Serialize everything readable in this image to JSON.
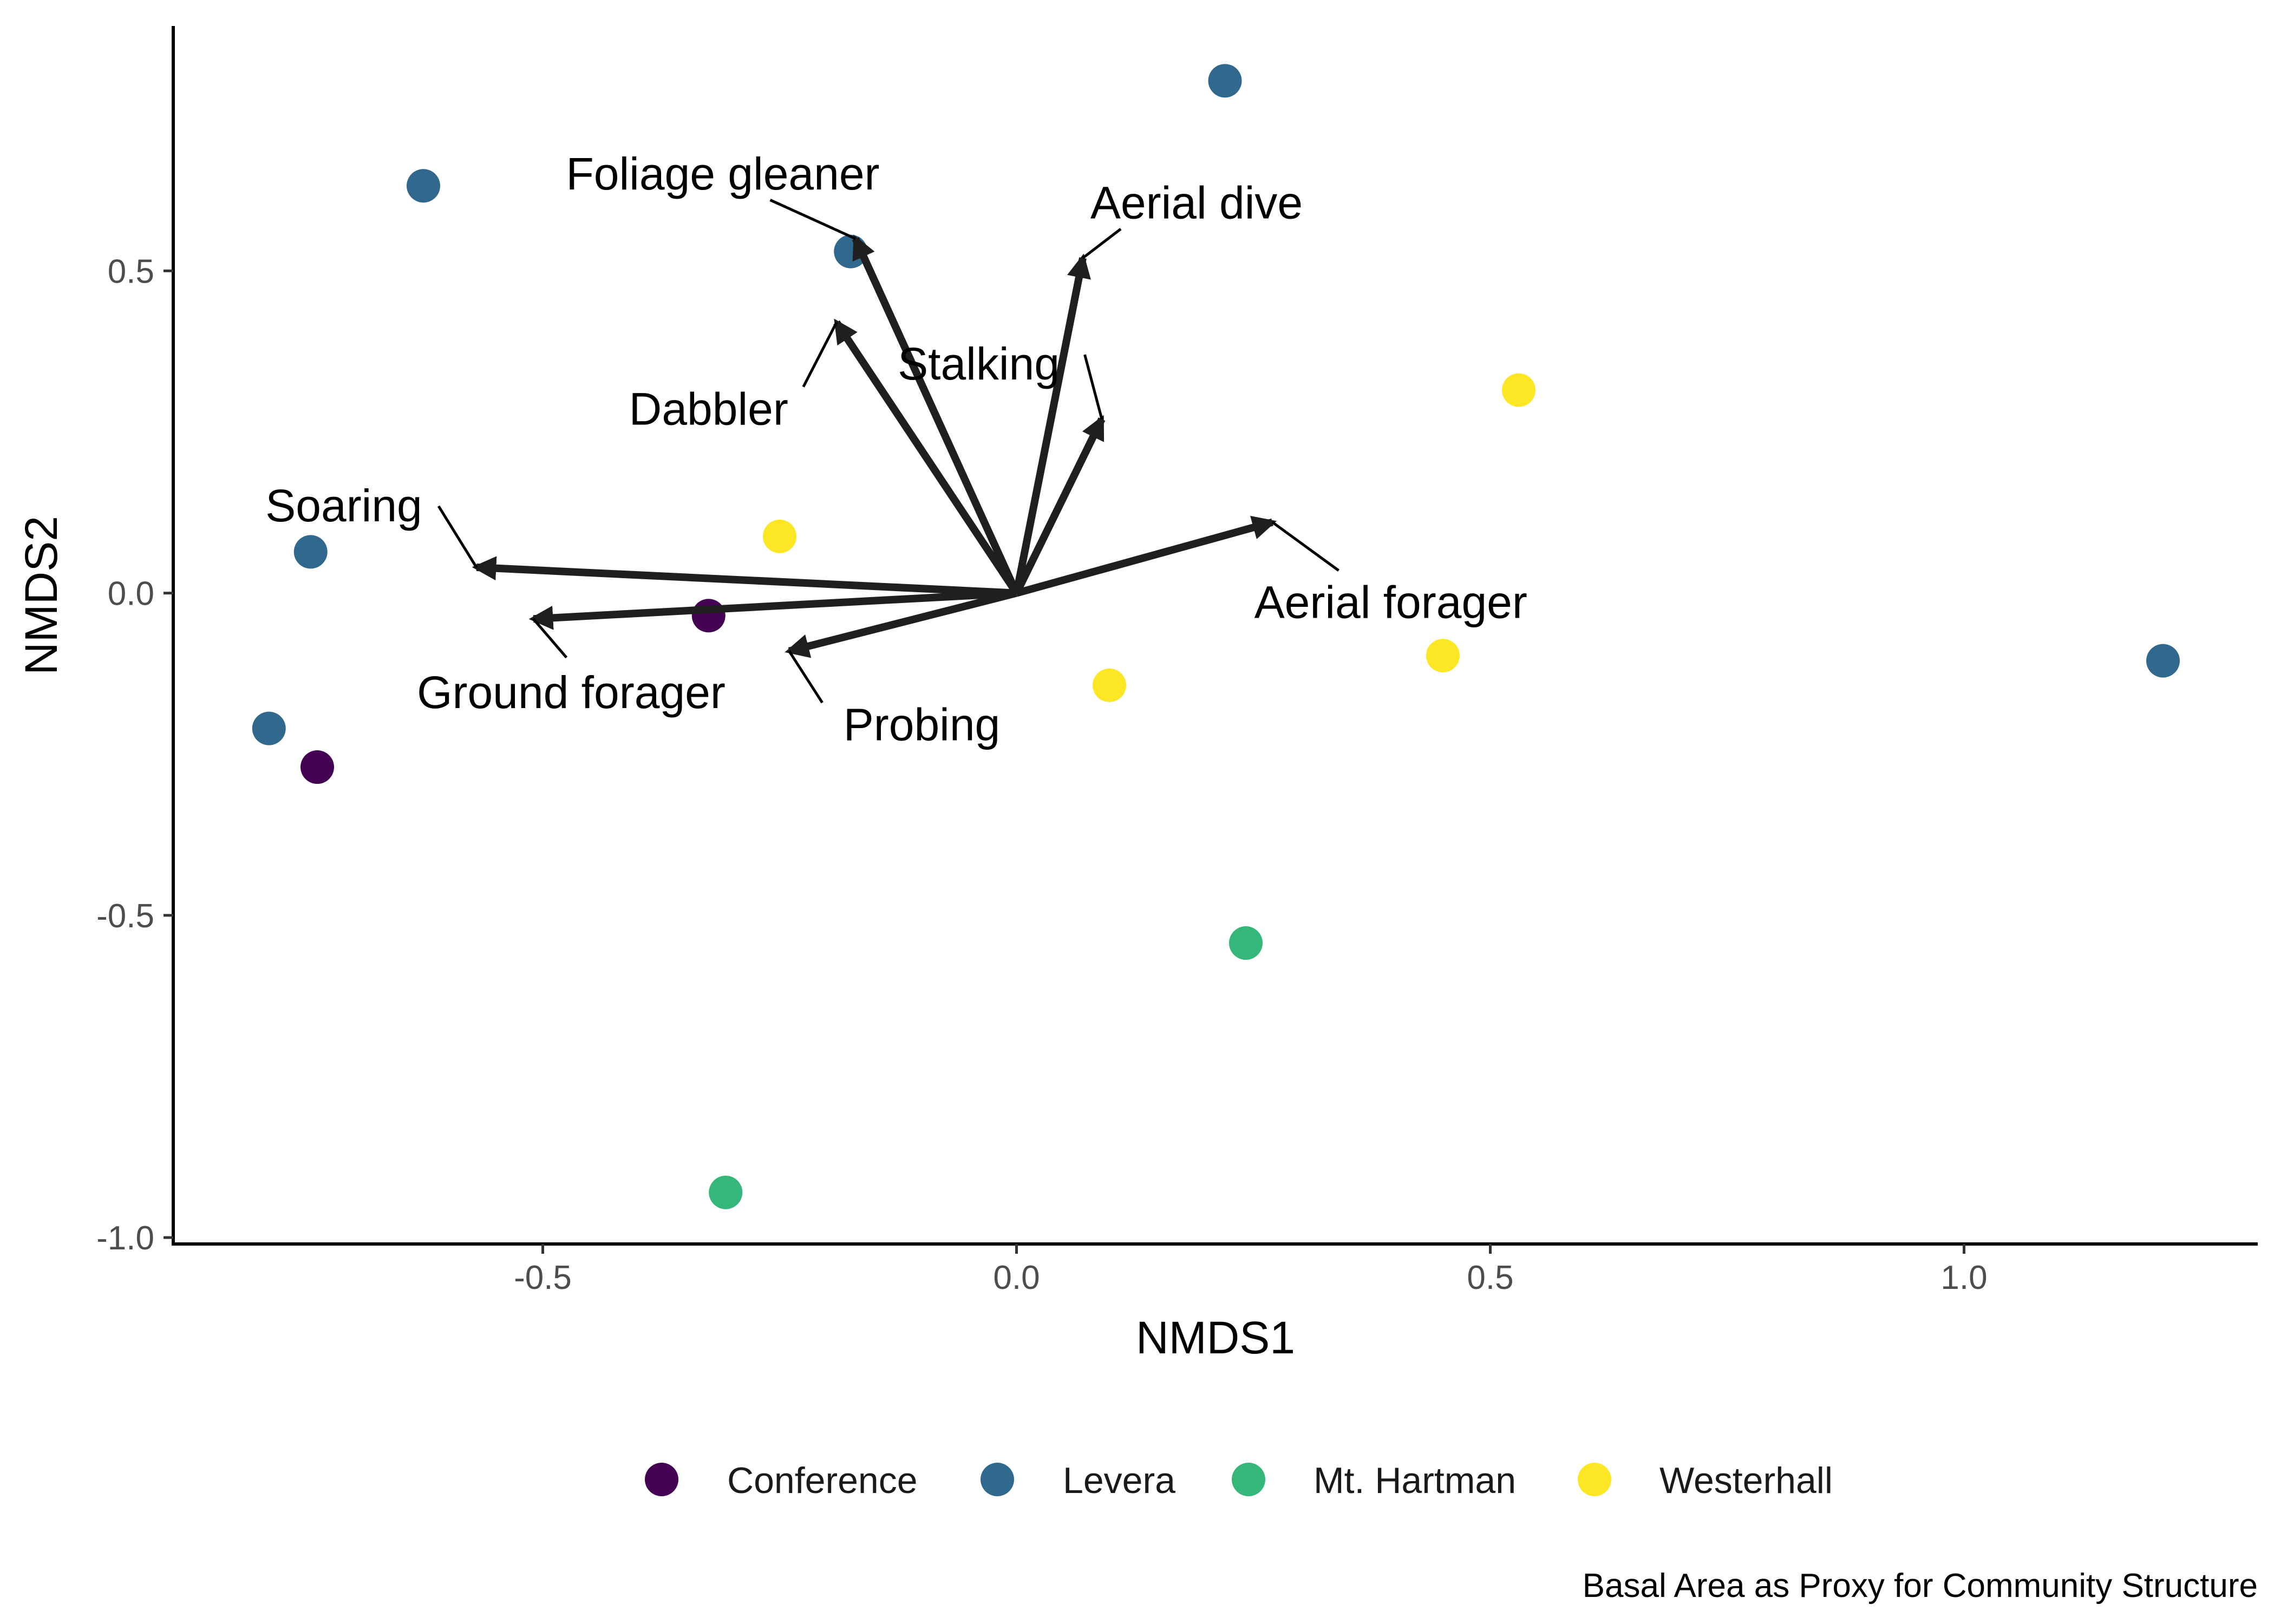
{
  "chart_data": {
    "type": "scatter",
    "title": "",
    "xlabel": "NMDS1",
    "ylabel": "NMDS2",
    "caption": "Basal Area as Proxy for Community Structure",
    "xlim": [
      -0.89,
      1.31
    ],
    "ylim": [
      -1.01,
      0.88
    ],
    "x_ticks": [
      -0.5,
      0.0,
      0.5,
      1.0
    ],
    "x_tick_labels": [
      "-0.5",
      "0.0",
      "0.5",
      "1.0"
    ],
    "y_ticks": [
      -1.0,
      -0.5,
      0.0,
      0.5
    ],
    "y_tick_labels": [
      "-1.0",
      "-0.5",
      "0.0",
      "0.5"
    ],
    "grid": false,
    "legend_position": "bottom",
    "series": [
      {
        "name": "Conference",
        "color": "#440154",
        "points": [
          {
            "x": -0.325,
            "y": -0.035
          },
          {
            "x": -0.738,
            "y": -0.27
          }
        ]
      },
      {
        "name": "Levera",
        "color": "#31688E",
        "points": [
          {
            "x": -0.626,
            "y": 0.632
          },
          {
            "x": -0.745,
            "y": 0.064
          },
          {
            "x": -0.789,
            "y": -0.21
          },
          {
            "x": 0.22,
            "y": 0.795
          },
          {
            "x": -0.175,
            "y": 0.53
          },
          {
            "x": 1.21,
            "y": -0.105
          }
        ]
      },
      {
        "name": "Mt. Hartman",
        "color": "#35B779",
        "points": [
          {
            "x": 0.242,
            "y": -0.543
          },
          {
            "x": -0.307,
            "y": -0.93
          }
        ]
      },
      {
        "name": "Westerhall",
        "color": "#FDE725",
        "points": [
          {
            "x": -0.25,
            "y": 0.088
          },
          {
            "x": 0.098,
            "y": -0.143
          },
          {
            "x": 0.45,
            "y": -0.097
          },
          {
            "x": 0.53,
            "y": 0.315
          }
        ]
      }
    ],
    "vectors": [
      {
        "label": "Foliage gleaner",
        "x": -0.17,
        "y": 0.55,
        "label_x": -0.31,
        "label_y": 0.65,
        "leader_x": -0.26,
        "leader_y": 0.61,
        "anchor": "middle"
      },
      {
        "label": "Aerial dive",
        "x": 0.07,
        "y": 0.52,
        "label_x": 0.19,
        "label_y": 0.605,
        "leader_x": 0.11,
        "leader_y": 0.565,
        "anchor": "middle"
      },
      {
        "label": "Dabbler",
        "x": -0.19,
        "y": 0.42,
        "label_x": -0.325,
        "label_y": 0.285,
        "leader_x": -0.225,
        "leader_y": 0.32,
        "anchor": "middle"
      },
      {
        "label": "Stalking",
        "x": 0.09,
        "y": 0.27,
        "label_x": -0.04,
        "label_y": 0.355,
        "leader_x": 0.072,
        "leader_y": 0.37,
        "anchor": "middle"
      },
      {
        "label": "Soaring",
        "x": -0.57,
        "y": 0.04,
        "label_x": -0.71,
        "label_y": 0.135,
        "leader_x": -0.61,
        "leader_y": 0.135,
        "anchor": "middle"
      },
      {
        "label": "Aerial forager",
        "x": 0.27,
        "y": 0.11,
        "label_x": 0.395,
        "label_y": -0.015,
        "leader_x": 0.34,
        "leader_y": 0.035,
        "anchor": "middle"
      },
      {
        "label": "Ground forager",
        "x": -0.51,
        "y": -0.04,
        "label_x": -0.47,
        "label_y": -0.155,
        "leader_x": -0.475,
        "leader_y": -0.1,
        "anchor": "middle"
      },
      {
        "label": "Probing",
        "x": -0.24,
        "y": -0.09,
        "label_x": -0.1,
        "label_y": -0.205,
        "leader_x": -0.205,
        "leader_y": -0.17,
        "anchor": "middle"
      }
    ]
  },
  "legend": {
    "items": [
      {
        "label": "Conference",
        "color": "#440154"
      },
      {
        "label": "Levera",
        "color": "#31688E"
      },
      {
        "label": "Mt. Hartman",
        "color": "#35B779"
      },
      {
        "label": "Westerhall",
        "color": "#FDE725"
      }
    ]
  }
}
